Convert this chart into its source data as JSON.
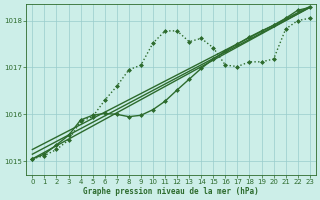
{
  "xlabel": "Graphe pression niveau de la mer (hPa)",
  "bg_color": "#cceee8",
  "plot_bg_color": "#cceee8",
  "grid_color": "#99cccc",
  "line_color": "#2d6b2d",
  "xlim": [
    -0.5,
    23.5
  ],
  "ylim": [
    1014.7,
    1018.35
  ],
  "yticks": [
    1015,
    1016,
    1017,
    1018
  ],
  "xticks": [
    0,
    1,
    2,
    3,
    4,
    5,
    6,
    7,
    8,
    9,
    10,
    11,
    12,
    13,
    14,
    15,
    16,
    17,
    18,
    19,
    20,
    21,
    22,
    23
  ],
  "series": [
    {
      "x": [
        0,
        1,
        2,
        3,
        4,
        5,
        6,
        7,
        8,
        9,
        10,
        11,
        12,
        13,
        14,
        15,
        16,
        17,
        18,
        19,
        20,
        21,
        22,
        23
      ],
      "y": [
        1015.05,
        1015.12,
        1015.25,
        1015.45,
        1015.85,
        1015.95,
        1016.3,
        1016.6,
        1016.95,
        1017.05,
        1017.52,
        1017.78,
        1017.78,
        1017.55,
        1017.62,
        1017.42,
        1017.05,
        1017.02,
        1017.12,
        1017.12,
        1017.18,
        1017.82,
        1018.0,
        1018.05
      ],
      "linestyle": ":",
      "marker": "D",
      "markersize": 2.0,
      "lw": 1.0
    },
    {
      "x": [
        0,
        23
      ],
      "y": [
        1015.05,
        1018.28
      ],
      "linestyle": "-",
      "marker": null,
      "markersize": 0,
      "lw": 1.0
    },
    {
      "x": [
        0,
        23
      ],
      "y": [
        1015.15,
        1018.28
      ],
      "linestyle": "-",
      "marker": null,
      "markersize": 0,
      "lw": 1.0
    },
    {
      "x": [
        0,
        23
      ],
      "y": [
        1015.25,
        1018.3
      ],
      "linestyle": "-",
      "marker": null,
      "markersize": 0,
      "lw": 1.0
    },
    {
      "x": [
        0,
        1,
        2,
        3,
        4,
        5,
        6,
        7,
        8,
        9,
        10,
        11,
        12,
        13,
        14,
        15,
        16,
        17,
        18,
        19,
        20,
        21,
        22,
        23
      ],
      "y": [
        1015.05,
        1015.15,
        1015.35,
        1015.55,
        1015.88,
        1015.98,
        1016.02,
        1016.0,
        1015.95,
        1015.98,
        1016.1,
        1016.28,
        1016.52,
        1016.75,
        1016.98,
        1017.18,
        1017.35,
        1017.5,
        1017.65,
        1017.78,
        1017.9,
        1018.05,
        1018.22,
        1018.28
      ],
      "linestyle": "-",
      "marker": "D",
      "markersize": 2.0,
      "lw": 1.0
    }
  ]
}
